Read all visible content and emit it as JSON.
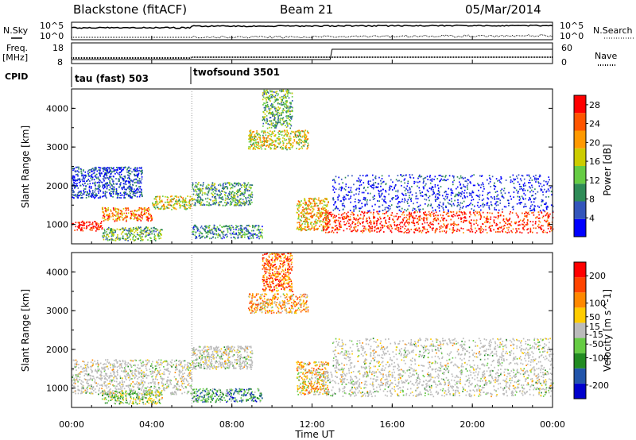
{
  "header": {
    "station": "Blackstone (fitACF)",
    "beam": "Beam 21",
    "date": "05/Mar/2014"
  },
  "summary_panels": {
    "nsky_label": "N.Sky",
    "nsearch_label": "N.Search",
    "noise_ticks": [
      "10^5",
      "10^0"
    ],
    "freq_label_1": "Freq.",
    "freq_label_2": "[MHz]",
    "freq_ticks": [
      "18",
      "8"
    ],
    "nave_label": "Nave",
    "nave_ticks": [
      "60",
      "0"
    ],
    "cpid_label": "CPID",
    "modes": [
      {
        "name": "tau (fast) 503",
        "start_hour": 0,
        "end_hour": 6
      },
      {
        "name": "twofsound 3501",
        "start_hour": 6,
        "end_hour": 24
      }
    ]
  },
  "chart_data": [
    {
      "type": "heatmap",
      "quantity": "power",
      "ylabel": "Slant Range [km]",
      "xlabel": "Time UT",
      "xlim": [
        0,
        24
      ],
      "ylim": [
        500,
        4500
      ],
      "x_ticks": [
        "00:00",
        "04:00",
        "08:00",
        "12:00",
        "16:00",
        "20:00",
        "00:00"
      ],
      "y_ticks": [
        1000,
        2000,
        3000,
        4000
      ],
      "colorbar": {
        "label": "Power [dB]",
        "ticks": [
          4,
          8,
          12,
          16,
          20,
          24,
          28
        ],
        "range": [
          0,
          30
        ],
        "colors": [
          "#0000ff",
          "#3355bb",
          "#2e8b57",
          "#66cc44",
          "#cccc00",
          "#ff9900",
          "#ff5500",
          "#ff0000"
        ]
      },
      "echo_regions": [
        {
          "t0": 0.0,
          "t1": 1.5,
          "r0": 850,
          "r1": 1100,
          "level": 0.95
        },
        {
          "t0": 1.5,
          "t1": 4.0,
          "r0": 1100,
          "r1": 1450,
          "level": 0.75
        },
        {
          "t0": 4.0,
          "t1": 6.0,
          "r0": 1400,
          "r1": 1750,
          "level": 0.55
        },
        {
          "t0": 6.0,
          "t1": 9.0,
          "r0": 1500,
          "r1": 2100,
          "level": 0.35
        },
        {
          "t0": 1.5,
          "t1": 4.5,
          "r0": 600,
          "r1": 950,
          "level": 0.4
        },
        {
          "t0": 6.0,
          "t1": 9.5,
          "r0": 650,
          "r1": 1000,
          "level": 0.3
        },
        {
          "t0": 8.8,
          "t1": 11.8,
          "r0": 2950,
          "r1": 3450,
          "level": 0.55
        },
        {
          "t0": 11.2,
          "t1": 12.8,
          "r0": 850,
          "r1": 1700,
          "level": 0.65
        },
        {
          "t0": 12.5,
          "t1": 24.0,
          "r0": 800,
          "r1": 1350,
          "level": 0.9
        },
        {
          "t0": 13.0,
          "t1": 24.0,
          "r0": 1350,
          "r1": 2300,
          "level": 0.1
        },
        {
          "t0": 0.0,
          "t1": 3.5,
          "r0": 1700,
          "r1": 2500,
          "level": 0.15
        },
        {
          "t0": 9.5,
          "t1": 11.0,
          "r0": 3500,
          "r1": 4500,
          "level": 0.4
        }
      ]
    },
    {
      "type": "heatmap",
      "quantity": "velocity",
      "ylabel": "Slant Range [km]",
      "xlabel": "Time UT",
      "xlim": [
        0,
        24
      ],
      "ylim": [
        500,
        4500
      ],
      "x_ticks": [
        "00:00",
        "04:00",
        "08:00",
        "12:00",
        "16:00",
        "20:00",
        "00:00"
      ],
      "y_ticks": [
        1000,
        2000,
        3000,
        4000
      ],
      "colorbar": {
        "label": "Velocity [m s^-1]",
        "ticks": [
          200,
          100,
          50,
          15,
          -15,
          -50,
          -100,
          -200
        ],
        "range": [
          -250,
          250
        ],
        "colors": [
          "#0000cc",
          "#2255aa",
          "#228b22",
          "#66cc44",
          "#bbbbbb",
          "#ffcc00",
          "#ff8800",
          "#ff4400",
          "#ff0000"
        ]
      },
      "echo_regions": [
        {
          "t0": 0.0,
          "t1": 6.0,
          "r0": 850,
          "r1": 1750,
          "level": 0.5
        },
        {
          "t0": 6.0,
          "t1": 9.0,
          "r0": 1500,
          "r1": 2100,
          "level": 0.5
        },
        {
          "t0": 1.5,
          "t1": 4.5,
          "r0": 600,
          "r1": 950,
          "level": 0.45
        },
        {
          "t0": 6.0,
          "t1": 9.5,
          "r0": 650,
          "r1": 1000,
          "level": 0.3
        },
        {
          "t0": 8.8,
          "t1": 11.8,
          "r0": 2950,
          "r1": 3450,
          "level": 0.65
        },
        {
          "t0": 11.2,
          "t1": 12.8,
          "r0": 850,
          "r1": 1700,
          "level": 0.62
        },
        {
          "t0": 12.5,
          "t1": 24.0,
          "r0": 800,
          "r1": 1450,
          "level": 0.5
        },
        {
          "t0": 13.0,
          "t1": 24.0,
          "r0": 1450,
          "r1": 2300,
          "level": 0.5
        },
        {
          "t0": 9.5,
          "t1": 11.0,
          "r0": 3500,
          "r1": 4500,
          "level": 0.8
        }
      ]
    }
  ]
}
